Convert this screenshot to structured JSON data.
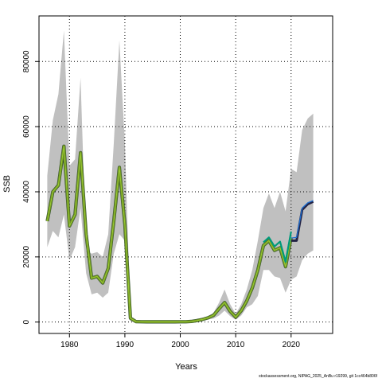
{
  "chart_data": {
    "type": "line",
    "title": "",
    "xlabel": "Years",
    "ylabel": "SSB",
    "xlim": [
      1974.5,
      2027.5
    ],
    "ylim": [
      -3500,
      94000
    ],
    "x_ticks": [
      1980,
      1990,
      2000,
      2010,
      2020
    ],
    "y_ticks": [
      0,
      20000,
      40000,
      60000,
      80000
    ],
    "grid": true,
    "legend": "none",
    "colors": {
      "band": "#c0c0c0",
      "historic_outer": "#6b8e23",
      "historic_inner": "#9acd32",
      "historic_dark": "#2f4f2f",
      "teal_series": "#009a7a",
      "forecast_dark": "#222244",
      "forecast_blue": "#1f6fd0",
      "grid": "#000000"
    },
    "band": {
      "x": [
        1976,
        1977,
        1978,
        1979,
        1980,
        1981,
        1982,
        1983,
        1984,
        1985,
        1986,
        1987,
        1988,
        1989,
        1990,
        1991,
        1992,
        1993,
        1994,
        1995,
        1996,
        1997,
        1998,
        1999,
        2000,
        2001,
        2002,
        2003,
        2004,
        2005,
        2006,
        2007,
        2008,
        2009,
        2010,
        2011,
        2012,
        2013,
        2014,
        2015,
        2016,
        2017,
        2018,
        2019,
        2020,
        2021,
        2022,
        2023,
        2024
      ],
      "upper": [
        45000,
        62000,
        70000,
        89500,
        48000,
        50000,
        75000,
        22000,
        21000,
        21500,
        20000,
        27000,
        55000,
        86500,
        55000,
        2000,
        400,
        250,
        200,
        200,
        200,
        200,
        200,
        200,
        200,
        250,
        400,
        700,
        1200,
        1800,
        2800,
        6000,
        10000,
        5500,
        2500,
        5500,
        10000,
        16000,
        25000,
        35000,
        39500,
        35000,
        40000,
        34000,
        47000,
        46000,
        59000,
        62500,
        64000
      ],
      "lower": [
        23000,
        28000,
        26000,
        33000,
        19000,
        23000,
        35000,
        15000,
        8500,
        9000,
        7500,
        9000,
        21000,
        27000,
        25000,
        300,
        60,
        40,
        30,
        30,
        30,
        30,
        30,
        30,
        30,
        40,
        80,
        200,
        500,
        800,
        1100,
        2000,
        3500,
        1800,
        700,
        2000,
        4500,
        5500,
        8000,
        16000,
        16000,
        14000,
        13500,
        9000,
        13000,
        14000,
        19000,
        21000,
        22000
      ]
    },
    "series": [
      {
        "x": [
          1976,
          1977,
          1978,
          1979,
          1980,
          1981,
          1982,
          1983,
          1984,
          1985,
          1986,
          1987,
          1988,
          1989,
          1990,
          1991,
          1992,
          1993,
          1994,
          1995,
          1996,
          1997,
          1998,
          1999,
          2000,
          2001,
          2002,
          2003,
          2004,
          2005,
          2006,
          2007,
          2008,
          2009,
          2010,
          2011,
          2012,
          2013,
          2014,
          2015,
          2016,
          2017,
          2018,
          2019,
          2020
        ],
        "values": [
          31000,
          40000,
          42000,
          54000,
          29500,
          33000,
          52000,
          27000,
          13500,
          14000,
          12000,
          16500,
          31000,
          47500,
          30000,
          1200,
          150,
          80,
          60,
          60,
          60,
          60,
          60,
          60,
          80,
          100,
          200,
          450,
          800,
          1300,
          2100,
          4100,
          6000,
          3300,
          1500,
          3500,
          6500,
          10500,
          16000,
          23500,
          25000,
          22000,
          22800,
          17000,
          26000
        ]
      },
      {
        "x": [
          2015,
          2016,
          2017,
          2018,
          2019,
          2020
        ],
        "values": [
          24500,
          26000,
          23200,
          24700,
          18500,
          27800
        ]
      },
      {
        "x": [
          2020,
          2021,
          2022,
          2023,
          2024
        ],
        "values": [
          25000,
          25000,
          34500,
          36200,
          37000
        ]
      },
      {
        "x": [
          2020,
          2021,
          2022,
          2023,
          2024
        ],
        "values": [
          25800,
          26000,
          35000,
          36600,
          37300
        ]
      }
    ]
  },
  "footer": {
    "text": "stockassessment.org, NIPAG_2025_AnBu r19299, git 1cc464b806f"
  }
}
